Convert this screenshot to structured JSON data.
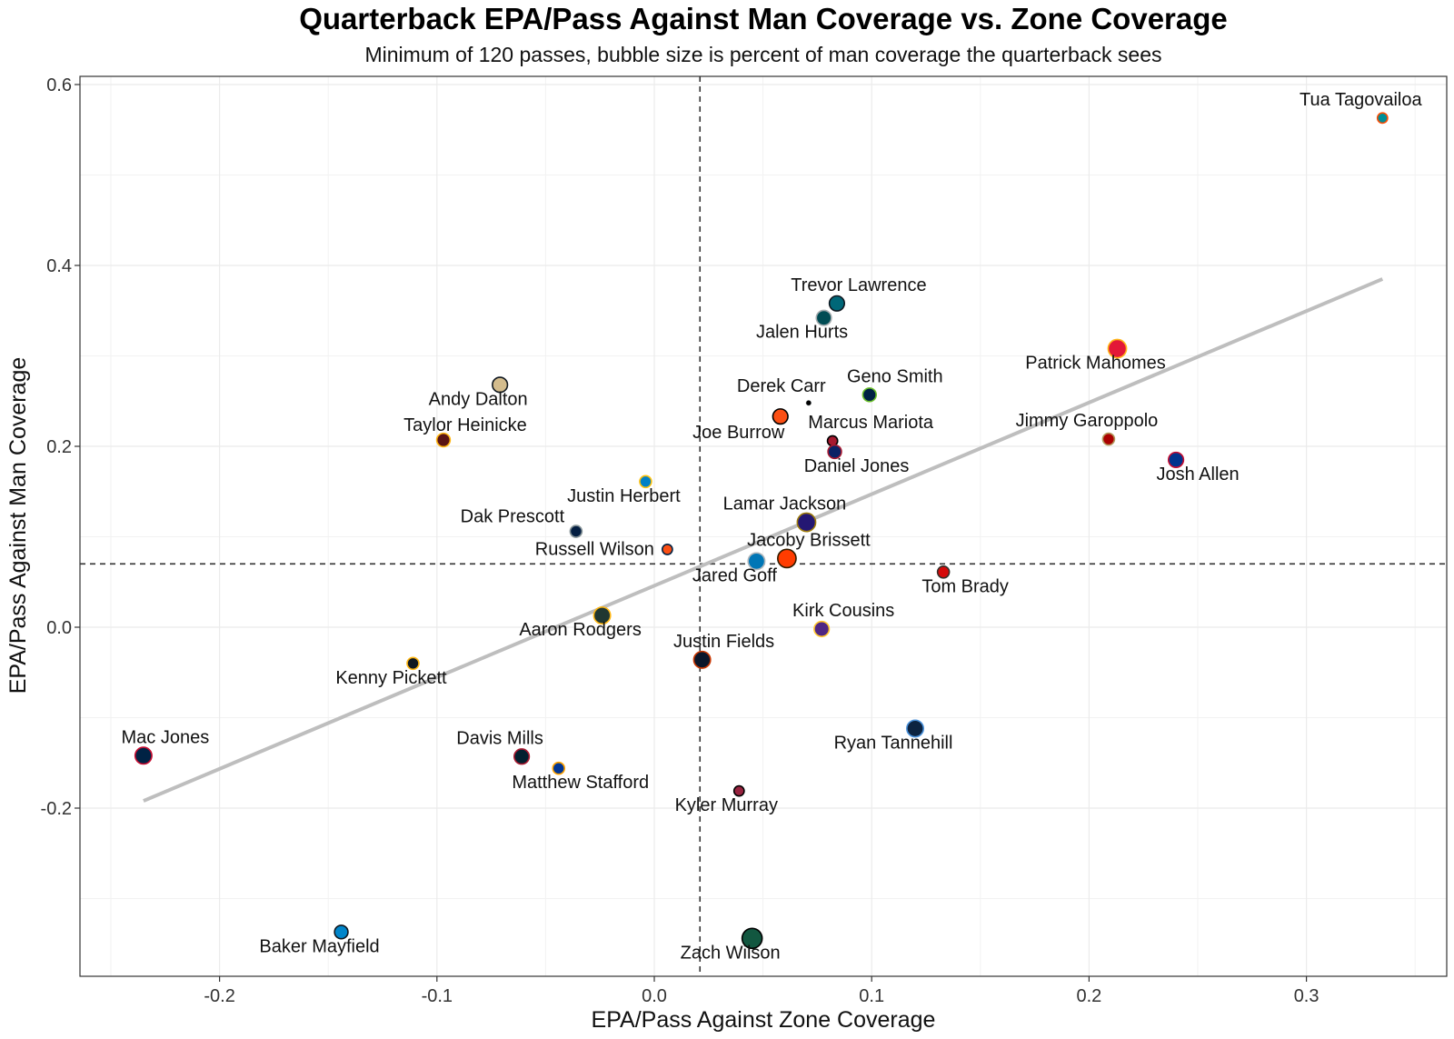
{
  "chart_data": {
    "type": "scatter",
    "title": "Quarterback EPA/Pass Against Man Coverage vs. Zone Coverage",
    "subtitle": "Minimum of 120 passes, bubble size is percent of man coverage the quarterback sees",
    "xlabel": "EPA/Pass Against Zone Coverage",
    "ylabel": "EPA/Pass Against Man Coverage",
    "xlim": [
      -0.25,
      0.36
    ],
    "ylim": [
      -0.37,
      0.62
    ],
    "x_ticks": [
      -0.2,
      -0.1,
      0.0,
      0.1,
      0.2,
      0.3
    ],
    "x_tick_labels": [
      "-0.2",
      "-0.1",
      "0.0",
      "0.1",
      "0.2",
      "0.3"
    ],
    "y_ticks": [
      -0.2,
      0.0,
      0.2,
      0.4,
      0.6
    ],
    "y_tick_labels": [
      "-0.2",
      "0.0",
      "0.2",
      "0.4",
      "0.6"
    ],
    "grid": true,
    "reference_lines": {
      "x": 0.021,
      "y": 0.07,
      "style": "dashed"
    },
    "trend_line": {
      "x": [
        -0.235,
        0.335
      ],
      "y": [
        -0.192,
        0.385
      ],
      "color": "#bebebe"
    },
    "points": [
      {
        "name": "Tua Tagovailoa",
        "x": 0.335,
        "y": 0.563,
        "size": 4,
        "fill": "#008E97",
        "stroke": "#FC4C02"
      },
      {
        "name": "Trevor Lawrence",
        "x": 0.084,
        "y": 0.358,
        "size": 7,
        "fill": "#006778",
        "stroke": "#101820"
      },
      {
        "name": "Jalen Hurts",
        "x": 0.078,
        "y": 0.342,
        "size": 7,
        "fill": "#004C54",
        "stroke": "#A5ACAF"
      },
      {
        "name": "Patrick Mahomes",
        "x": 0.213,
        "y": 0.308,
        "size": 9,
        "fill": "#E31837",
        "stroke": "#FFB81C"
      },
      {
        "name": "Andy Dalton",
        "x": -0.071,
        "y": 0.268,
        "size": 7,
        "fill": "#D3BC8D",
        "stroke": "#101820"
      },
      {
        "name": "Geno Smith",
        "x": 0.099,
        "y": 0.257,
        "size": 6,
        "fill": "#002244",
        "stroke": "#69BE28"
      },
      {
        "name": "Derek Carr",
        "x": 0.071,
        "y": 0.248,
        "size": 1,
        "fill": "#000000",
        "stroke": "#A5ACAF"
      },
      {
        "name": "Joe Burrow",
        "x": 0.058,
        "y": 0.233,
        "size": 7,
        "fill": "#FB4F14",
        "stroke": "#000000"
      },
      {
        "name": "Taylor Heinicke",
        "x": -0.097,
        "y": 0.207,
        "size": 6,
        "fill": "#5A1414",
        "stroke": "#FFB612"
      },
      {
        "name": "Jimmy Garoppolo",
        "x": 0.209,
        "y": 0.208,
        "size": 5,
        "fill": "#AA0000",
        "stroke": "#B3995D"
      },
      {
        "name": "Marcus Mariota",
        "x": 0.082,
        "y": 0.206,
        "size": 4,
        "fill": "#A71930",
        "stroke": "#000000"
      },
      {
        "name": "Daniel Jones",
        "x": 0.083,
        "y": 0.194,
        "size": 6,
        "fill": "#0B2265",
        "stroke": "#A71930"
      },
      {
        "name": "Josh Allen",
        "x": 0.24,
        "y": 0.185,
        "size": 7,
        "fill": "#00338D",
        "stroke": "#C60C30"
      },
      {
        "name": "Justin Herbert",
        "x": -0.004,
        "y": 0.161,
        "size": 5,
        "fill": "#0080C6",
        "stroke": "#FFC20E"
      },
      {
        "name": "Lamar Jackson",
        "x": 0.07,
        "y": 0.116,
        "size": 9,
        "fill": "#241773",
        "stroke": "#9E7C0C"
      },
      {
        "name": "Dak Prescott",
        "x": -0.036,
        "y": 0.106,
        "size": 5,
        "fill": "#041E42",
        "stroke": "#869397"
      },
      {
        "name": "Russell Wilson",
        "x": 0.006,
        "y": 0.086,
        "size": 4,
        "fill": "#FB4F14",
        "stroke": "#002244"
      },
      {
        "name": "Jacoby Brissett",
        "x": 0.061,
        "y": 0.076,
        "size": 9,
        "fill": "#FF3C00",
        "stroke": "#311D00"
      },
      {
        "name": "Jared Goff",
        "x": 0.047,
        "y": 0.073,
        "size": 8,
        "fill": "#0076B6",
        "stroke": "#B0B7BC"
      },
      {
        "name": "Tom Brady",
        "x": 0.133,
        "y": 0.061,
        "size": 5,
        "fill": "#D50A0A",
        "stroke": "#34302B"
      },
      {
        "name": "Aaron Rodgers",
        "x": -0.024,
        "y": 0.013,
        "size": 8,
        "fill": "#203731",
        "stroke": "#FFB612"
      },
      {
        "name": "Kirk Cousins",
        "x": 0.077,
        "y": -0.002,
        "size": 7,
        "fill": "#4F2683",
        "stroke": "#FFC62F"
      },
      {
        "name": "Kenny Pickett",
        "x": -0.111,
        "y": -0.04,
        "size": 5,
        "fill": "#101820",
        "stroke": "#FFB612"
      },
      {
        "name": "Justin Fields",
        "x": 0.022,
        "y": -0.036,
        "size": 8,
        "fill": "#0B162A",
        "stroke": "#C83803"
      },
      {
        "name": "Ryan Tannehill",
        "x": 0.12,
        "y": -0.112,
        "size": 8,
        "fill": "#0C2340",
        "stroke": "#4B92DB"
      },
      {
        "name": "Mac Jones",
        "x": -0.235,
        "y": -0.142,
        "size": 8,
        "fill": "#002244",
        "stroke": "#C60C30"
      },
      {
        "name": "Davis Mills",
        "x": -0.061,
        "y": -0.143,
        "size": 7,
        "fill": "#03202F",
        "stroke": "#A71930"
      },
      {
        "name": "Matthew Stafford",
        "x": -0.044,
        "y": -0.156,
        "size": 5,
        "fill": "#003594",
        "stroke": "#FFA300"
      },
      {
        "name": "Kyler Murray",
        "x": 0.039,
        "y": -0.181,
        "size": 4,
        "fill": "#97233F",
        "stroke": "#000000"
      },
      {
        "name": "Baker Mayfield",
        "x": -0.144,
        "y": -0.337,
        "size": 6,
        "fill": "#0085CA",
        "stroke": "#101820"
      },
      {
        "name": "Zach Wilson",
        "x": 0.045,
        "y": -0.344,
        "size": 10,
        "fill": "#125740",
        "stroke": "#000000"
      }
    ]
  }
}
